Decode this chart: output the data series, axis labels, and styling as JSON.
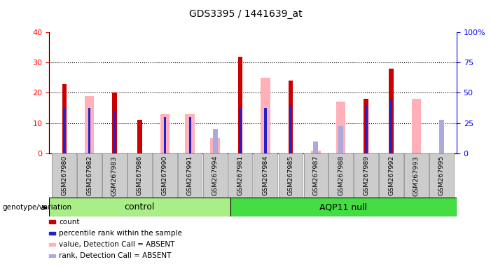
{
  "title": "GDS3395 / 1441639_at",
  "samples": [
    "GSM267980",
    "GSM267982",
    "GSM267983",
    "GSM267986",
    "GSM267990",
    "GSM267991",
    "GSM267994",
    "GSM267981",
    "GSM267984",
    "GSM267985",
    "GSM267987",
    "GSM267988",
    "GSM267989",
    "GSM267992",
    "GSM267993",
    "GSM267995"
  ],
  "groups": [
    "control",
    "control",
    "control",
    "control",
    "control",
    "control",
    "control",
    "AQP11 null",
    "AQP11 null",
    "AQP11 null",
    "AQP11 null",
    "AQP11 null",
    "AQP11 null",
    "AQP11 null",
    "AQP11 null",
    "AQP11 null"
  ],
  "count_red": [
    23,
    0,
    20,
    11,
    0,
    0,
    0,
    32,
    0,
    24,
    0,
    0,
    18,
    28,
    0,
    0
  ],
  "percentile_blue": [
    15,
    15,
    14,
    0,
    12,
    12,
    0,
    15,
    15,
    16,
    0,
    0,
    16,
    18,
    0,
    0
  ],
  "value_pink": [
    0,
    19,
    0,
    0,
    13,
    13,
    5,
    0,
    25,
    0,
    1,
    17,
    0,
    0,
    18,
    0
  ],
  "rank_lightblue": [
    0,
    0,
    0,
    0,
    0,
    0,
    8,
    0,
    0,
    0,
    4,
    9,
    0,
    0,
    0,
    11
  ],
  "ylim_left": [
    0,
    40
  ],
  "ylim_right": [
    0,
    100
  ],
  "yticks_left": [
    0,
    10,
    20,
    30,
    40
  ],
  "yticks_right": [
    0,
    25,
    50,
    75,
    100
  ],
  "color_red": "#cc0000",
  "color_blue": "#2222cc",
  "color_pink": "#ffb0b8",
  "color_lightblue": "#aaaadd",
  "color_ctrl_green": "#aaee88",
  "color_aqp_green": "#44dd44",
  "bar_width": 0.25,
  "control_count": 7,
  "group_control_label": "control",
  "group_aqp11_label": "AQP11 null",
  "legend_items": [
    "count",
    "percentile rank within the sample",
    "value, Detection Call = ABSENT",
    "rank, Detection Call = ABSENT"
  ]
}
